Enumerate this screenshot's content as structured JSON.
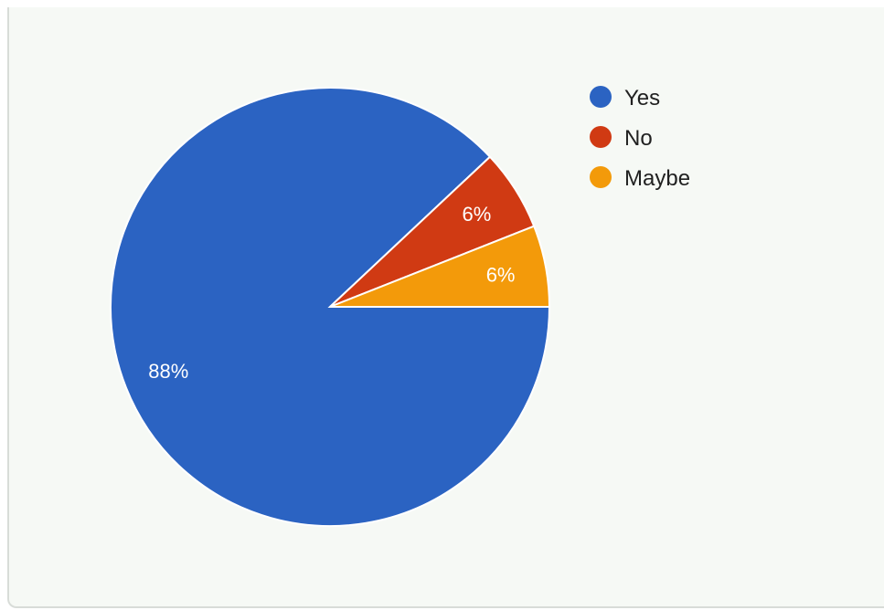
{
  "chart_data": {
    "type": "pie",
    "categories": [
      "Yes",
      "No",
      "Maybe"
    ],
    "values": [
      88,
      6,
      6
    ],
    "data_labels": [
      "88%",
      "6%",
      "6%"
    ],
    "colors": [
      "#2b63c2",
      "#d03a13",
      "#f39a0a"
    ],
    "legend_position": "top-right",
    "title": ""
  }
}
